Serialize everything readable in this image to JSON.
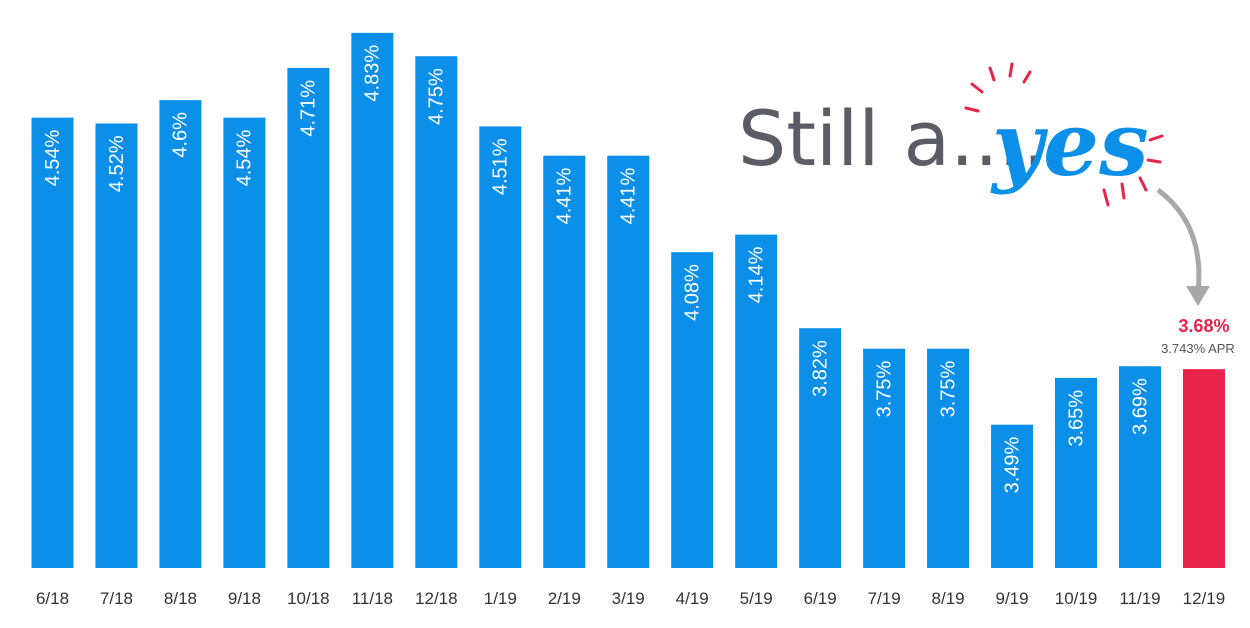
{
  "chart_data": {
    "type": "bar",
    "categories": [
      "6/18",
      "7/18",
      "8/18",
      "9/18",
      "10/18",
      "11/18",
      "12/18",
      "1/19",
      "2/19",
      "3/19",
      "4/19",
      "5/19",
      "6/19",
      "7/19",
      "8/19",
      "9/19",
      "10/19",
      "11/19",
      "12/19"
    ],
    "values": [
      4.54,
      4.52,
      4.6,
      4.54,
      4.71,
      4.83,
      4.75,
      4.51,
      4.41,
      4.41,
      4.08,
      4.14,
      3.82,
      3.75,
      3.75,
      3.49,
      3.65,
      3.69,
      3.68
    ],
    "value_labels": [
      "4.54%",
      "4.52%",
      "4.6%",
      "4.54%",
      "4.71%",
      "4.83%",
      "4.75%",
      "4.51%",
      "4.41%",
      "4.41%",
      "4.08%",
      "4.14%",
      "3.82%",
      "3.75%",
      "3.75%",
      "3.49%",
      "3.65%",
      "3.69%",
      "3.68%"
    ],
    "colors": [
      "#0b8fe8",
      "#0b8fe8",
      "#0b8fe8",
      "#0b8fe8",
      "#0b8fe8",
      "#0b8fe8",
      "#0b8fe8",
      "#0b8fe8",
      "#0b8fe8",
      "#0b8fe8",
      "#0b8fe8",
      "#0b8fe8",
      "#0b8fe8",
      "#0b8fe8",
      "#0b8fe8",
      "#0b8fe8",
      "#0b8fe8",
      "#0b8fe8",
      "#e8234a"
    ],
    "ylim": [
      3.0,
      4.85
    ],
    "apr_label": "3.743% APR",
    "annotation": "Still a....",
    "annotation_highlight": "yes"
  }
}
